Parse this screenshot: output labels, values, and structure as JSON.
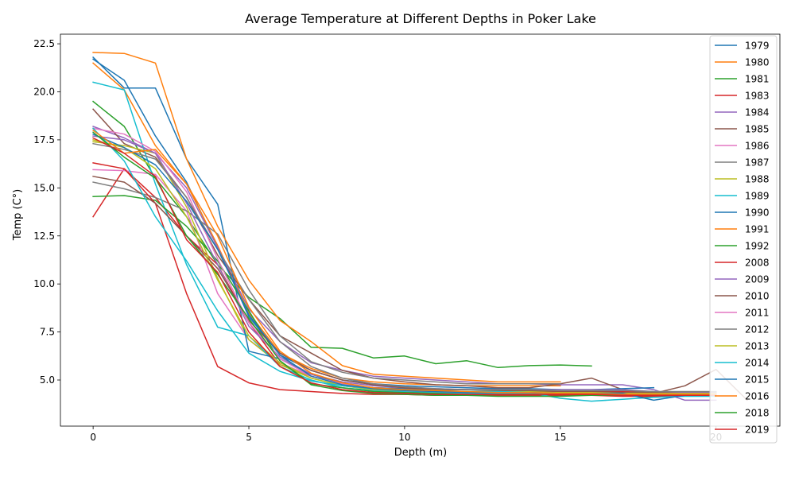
{
  "chart_data": {
    "type": "line",
    "title": "Average Temperature at Different Depths in Poker Lake",
    "xlabel": "Depth (m)",
    "ylabel": "Temp (C°)",
    "xlim": [
      -1.05,
      22.05
    ],
    "ylim": [
      2.6,
      23.0
    ],
    "xticks": [
      0,
      5,
      10,
      15,
      20
    ],
    "yticks": [
      5.0,
      7.5,
      10.0,
      12.5,
      15.0,
      17.5,
      20.0,
      22.5
    ],
    "legend_position": "right",
    "grid": false,
    "series": [
      {
        "name": "1979",
        "color": "#1f77b4",
        "x": [
          0,
          1,
          2,
          3,
          4,
          5,
          6,
          7,
          8,
          9,
          10,
          11,
          12,
          13,
          14,
          15
        ],
        "y": [
          21.7,
          20.6,
          17.7,
          15.3,
          11.9,
          8.3,
          6.3,
          5.5,
          5.0,
          4.8,
          4.7,
          4.65,
          4.6,
          4.55,
          4.55,
          4.5
        ]
      },
      {
        "name": "1980",
        "color": "#ff7f0e",
        "x": [
          0,
          1,
          2,
          3,
          4,
          5,
          6,
          7,
          8,
          9,
          10,
          11,
          12,
          13,
          14,
          15
        ],
        "y": [
          21.5,
          20.1,
          17.2,
          15.2,
          12.0,
          8.5,
          6.4,
          5.6,
          5.1,
          4.9,
          4.8,
          4.75,
          4.7,
          4.7,
          4.7,
          4.7
        ]
      },
      {
        "name": "1981",
        "color": "#2ca02c",
        "x": [
          0,
          1,
          2,
          3,
          4,
          5,
          6,
          7,
          8,
          9,
          10,
          11,
          12,
          13,
          14,
          15,
          16
        ],
        "y": [
          19.5,
          18.2,
          15.5,
          13.5,
          11.0,
          9.3,
          8.2,
          6.7,
          6.65,
          6.15,
          6.25,
          5.85,
          6.0,
          5.65,
          5.75,
          5.78,
          5.73
        ]
      },
      {
        "name": "1983",
        "color": "#d62728",
        "x": [
          0,
          1,
          2,
          3,
          4,
          5,
          6,
          7,
          8,
          9,
          10,
          11,
          12,
          13,
          14,
          15,
          16,
          17,
          18,
          19
        ],
        "y": [
          13.5,
          16.0,
          14.5,
          12.5,
          11.0,
          8.0,
          5.8,
          5.2,
          4.8,
          4.6,
          4.55,
          4.5,
          4.5,
          4.5,
          4.45,
          4.4,
          4.4,
          4.4,
          4.35,
          4.35
        ]
      },
      {
        "name": "1984",
        "color": "#9467bd",
        "x": [
          0,
          1,
          2,
          3,
          4,
          5,
          6,
          7,
          8,
          9,
          10,
          11,
          12,
          13,
          14,
          15,
          16,
          17,
          18,
          19,
          20
        ],
        "y": [
          18.2,
          17.6,
          16.8,
          15.0,
          11.9,
          8.7,
          7.0,
          5.9,
          5.5,
          5.2,
          5.1,
          5.0,
          4.9,
          4.8,
          4.8,
          4.75,
          4.75,
          4.75,
          4.5,
          3.95,
          3.95
        ]
      },
      {
        "name": "1985",
        "color": "#8c564b",
        "x": [
          0,
          1,
          2,
          3,
          4,
          5,
          6,
          7,
          8,
          9,
          10,
          11,
          12,
          13,
          14,
          15,
          16,
          17,
          18,
          19,
          20,
          21
        ],
        "y": [
          19.1,
          17.3,
          16.6,
          14.5,
          11.5,
          9.2,
          7.3,
          6.4,
          5.5,
          5.1,
          4.9,
          4.75,
          4.7,
          4.6,
          4.6,
          4.8,
          5.1,
          4.5,
          4.3,
          4.7,
          5.55,
          3.95
        ]
      },
      {
        "name": "1986",
        "color": "#e377c2",
        "x": [
          0,
          1,
          2,
          3,
          4,
          5,
          6,
          7,
          8,
          9,
          10,
          11,
          12,
          13,
          14,
          15
        ],
        "y": [
          15.95,
          15.9,
          15.7,
          13.8,
          9.5,
          7.1,
          5.9,
          5.2,
          4.8,
          4.6,
          4.5,
          4.5,
          4.5,
          4.45,
          4.45,
          4.45
        ]
      },
      {
        "name": "1987",
        "color": "#7f7f7f",
        "x": [
          0,
          1,
          2,
          3,
          4,
          5,
          6,
          7,
          8,
          9,
          10,
          11,
          12,
          13,
          14,
          15
        ],
        "y": [
          15.3,
          14.95,
          14.5,
          13.8,
          12.6,
          9.7,
          7.3,
          5.95,
          5.4,
          5.1,
          5.0,
          4.9,
          4.8,
          4.8,
          4.8,
          4.8
        ]
      },
      {
        "name": "1988",
        "color": "#bcbd22",
        "x": [
          0,
          1,
          2,
          3,
          4,
          5,
          6,
          7,
          8,
          9,
          10,
          11,
          12,
          13,
          14,
          15
        ],
        "y": [
          17.4,
          17.2,
          16.8,
          14.0,
          10.3,
          7.1,
          5.8,
          5.1,
          4.7,
          4.5,
          4.45,
          4.4,
          4.4,
          4.4,
          4.4,
          4.35
        ]
      },
      {
        "name": "1989",
        "color": "#17becf",
        "x": [
          0,
          1,
          2,
          3,
          4,
          5,
          6,
          7,
          8,
          9,
          10,
          11,
          12,
          13,
          14,
          15
        ],
        "y": [
          20.5,
          20.1,
          15.2,
          11.0,
          7.75,
          7.3,
          5.7,
          5.0,
          4.6,
          4.45,
          4.4,
          4.35,
          4.3,
          4.3,
          4.3,
          4.3
        ]
      },
      {
        "name": "1990",
        "color": "#1f77b4",
        "x": [
          0,
          1,
          2,
          3,
          4,
          5,
          6,
          7,
          8,
          9,
          10,
          11,
          12,
          13,
          14,
          15,
          16,
          17,
          18
        ],
        "y": [
          21.8,
          20.2,
          20.2,
          16.5,
          14.15,
          6.5,
          6.1,
          5.3,
          4.8,
          4.6,
          4.55,
          4.5,
          4.5,
          4.5,
          4.5,
          4.5,
          4.5,
          4.55,
          4.6
        ]
      },
      {
        "name": "1991",
        "color": "#ff7f0e",
        "x": [
          0,
          1,
          2,
          3,
          4,
          5,
          6,
          7,
          8,
          9,
          10,
          11,
          12,
          13,
          14,
          15
        ],
        "y": [
          22.05,
          22.0,
          21.5,
          16.5,
          13.0,
          10.2,
          8.1,
          7.0,
          5.75,
          5.3,
          5.2,
          5.1,
          5.0,
          4.9,
          4.9,
          4.9
        ]
      },
      {
        "name": "1992",
        "color": "#2ca02c",
        "x": [
          0,
          1,
          2,
          3,
          4,
          5,
          6,
          7,
          8,
          9,
          10,
          11,
          12,
          13,
          14,
          15,
          16,
          17,
          18,
          19,
          20
        ],
        "y": [
          14.55,
          14.6,
          14.35,
          13.0,
          11.2,
          8.6,
          6.0,
          4.8,
          4.6,
          4.4,
          4.35,
          4.3,
          4.25,
          4.2,
          4.2,
          4.2,
          4.2,
          4.2,
          4.1,
          4.2,
          4.3
        ]
      },
      {
        "name": "2008",
        "color": "#d62728",
        "x": [
          0,
          1,
          2,
          3,
          4,
          5,
          6,
          7,
          8,
          9,
          10,
          11,
          12,
          13,
          14,
          15,
          16,
          17,
          18,
          19,
          20
        ],
        "y": [
          16.3,
          16.0,
          14.2,
          9.5,
          5.7,
          4.85,
          4.5,
          4.4,
          4.3,
          4.25,
          4.25,
          4.2,
          4.2,
          4.2,
          4.2,
          4.2,
          4.2,
          4.15,
          4.15,
          4.2,
          4.2
        ]
      },
      {
        "name": "2009",
        "color": "#9467bd",
        "x": [
          0,
          1,
          2,
          3,
          4,
          5,
          6,
          7,
          8,
          9,
          10,
          11,
          12,
          13,
          14,
          15,
          16,
          17,
          18,
          19,
          20
        ],
        "y": [
          17.7,
          17.5,
          16.8,
          14.2,
          11.0,
          7.8,
          6.2,
          5.3,
          4.9,
          4.7,
          4.6,
          4.55,
          4.5,
          4.5,
          4.5,
          4.5,
          4.5,
          4.5,
          4.4,
          4.35,
          4.35
        ]
      },
      {
        "name": "2010",
        "color": "#8c564b",
        "x": [
          0,
          1,
          2,
          3,
          4,
          5,
          6,
          7,
          8,
          9,
          10,
          11,
          12,
          13,
          14,
          15,
          16,
          17,
          18,
          19,
          20
        ],
        "y": [
          15.6,
          15.3,
          14.2,
          12.5,
          10.8,
          8.1,
          6.4,
          5.5,
          5.0,
          4.75,
          4.6,
          4.5,
          4.5,
          4.45,
          4.45,
          4.4,
          4.4,
          4.35,
          4.35,
          4.3,
          4.3
        ]
      },
      {
        "name": "2011",
        "color": "#e377c2",
        "x": [
          0,
          1,
          2,
          3,
          4,
          5,
          6,
          7,
          8,
          9,
          10,
          11,
          12,
          13,
          14,
          15,
          16,
          17,
          18,
          19,
          20
        ],
        "y": [
          18.1,
          17.8,
          16.9,
          14.8,
          11.3,
          8.0,
          6.1,
          5.2,
          4.8,
          4.55,
          4.45,
          4.4,
          4.35,
          4.35,
          4.35,
          4.3,
          4.3,
          4.3,
          4.3,
          4.3,
          4.3
        ]
      },
      {
        "name": "2012",
        "color": "#7f7f7f",
        "x": [
          0,
          1,
          2,
          3,
          4,
          5,
          6,
          7,
          8,
          9,
          10,
          11,
          12,
          13,
          14,
          15,
          16,
          17,
          18,
          19,
          20
        ],
        "y": [
          17.3,
          17.0,
          16.5,
          14.5,
          11.8,
          9.2,
          7.0,
          5.7,
          5.1,
          4.8,
          4.65,
          4.55,
          4.5,
          4.5,
          4.5,
          4.45,
          4.45,
          4.45,
          4.4,
          4.4,
          4.4
        ]
      },
      {
        "name": "2013",
        "color": "#bcbd22",
        "x": [
          0,
          1,
          2,
          3,
          4,
          5,
          6,
          7,
          8,
          9,
          10,
          11,
          12,
          13,
          14,
          15,
          16,
          17,
          18,
          19,
          20
        ],
        "y": [
          17.5,
          17.1,
          16.0,
          13.5,
          10.2,
          7.3,
          5.9,
          5.1,
          4.7,
          4.5,
          4.45,
          4.4,
          4.4,
          4.35,
          4.35,
          4.35,
          4.35,
          4.3,
          4.3,
          4.3,
          4.3
        ]
      },
      {
        "name": "2014",
        "color": "#17becf",
        "x": [
          0,
          1,
          2,
          3,
          4,
          5,
          6,
          7,
          8,
          9,
          10,
          11,
          12,
          13,
          14,
          15,
          16,
          17,
          18,
          19,
          20
        ],
        "y": [
          18.1,
          16.4,
          13.5,
          11.2,
          8.6,
          6.4,
          5.45,
          4.95,
          4.7,
          4.55,
          4.5,
          4.45,
          4.4,
          4.4,
          4.35,
          4.05,
          3.9,
          4.0,
          4.1,
          4.15,
          4.15
        ]
      },
      {
        "name": "2015",
        "color": "#1f77b4",
        "x": [
          0,
          1,
          2,
          3,
          4,
          5,
          6,
          7,
          8,
          9,
          10,
          11,
          12,
          13,
          14,
          15,
          16,
          17,
          18,
          19,
          20
        ],
        "y": [
          17.8,
          17.1,
          16.2,
          14.3,
          11.8,
          8.4,
          6.3,
          5.2,
          4.75,
          4.55,
          4.45,
          4.4,
          4.35,
          4.35,
          4.35,
          4.3,
          4.3,
          4.3,
          3.95,
          4.2,
          4.2
        ]
      },
      {
        "name": "2016",
        "color": "#ff7f0e",
        "x": [
          0,
          1,
          2,
          3,
          4,
          5,
          6,
          7,
          8,
          9,
          10,
          11,
          12,
          13,
          14,
          15,
          16,
          17,
          18,
          19,
          20
        ],
        "y": [
          18.0,
          16.8,
          17.0,
          15.2,
          12.5,
          8.8,
          6.5,
          5.35,
          4.85,
          4.6,
          4.5,
          4.45,
          4.4,
          4.35,
          4.35,
          4.3,
          4.3,
          4.25,
          4.25,
          4.25,
          4.25
        ]
      },
      {
        "name": "2018",
        "color": "#2ca02c",
        "x": [
          0,
          1,
          2,
          3,
          4,
          5,
          6,
          7,
          8,
          9,
          10,
          11,
          12,
          13,
          14,
          15,
          16,
          17,
          18,
          19,
          20
        ],
        "y": [
          17.9,
          16.6,
          15.5,
          12.5,
          10.5,
          8.2,
          6.0,
          4.75,
          4.45,
          4.3,
          4.25,
          4.2,
          4.2,
          4.15,
          4.15,
          4.15,
          4.2,
          4.2,
          4.2,
          4.2,
          4.2
        ]
      },
      {
        "name": "2019",
        "color": "#d62728",
        "x": [
          0,
          1,
          2,
          3,
          4,
          5,
          6,
          7,
          8,
          9,
          10,
          11,
          12,
          13,
          14,
          15,
          16,
          17,
          18,
          19,
          20
        ],
        "y": [
          17.6,
          16.8,
          15.6,
          12.3,
          10.6,
          7.5,
          5.7,
          4.85,
          4.5,
          4.35,
          4.3,
          4.25,
          4.25,
          4.25,
          4.25,
          4.25,
          4.25,
          4.2,
          4.2,
          4.2,
          4.2
        ]
      }
    ]
  }
}
